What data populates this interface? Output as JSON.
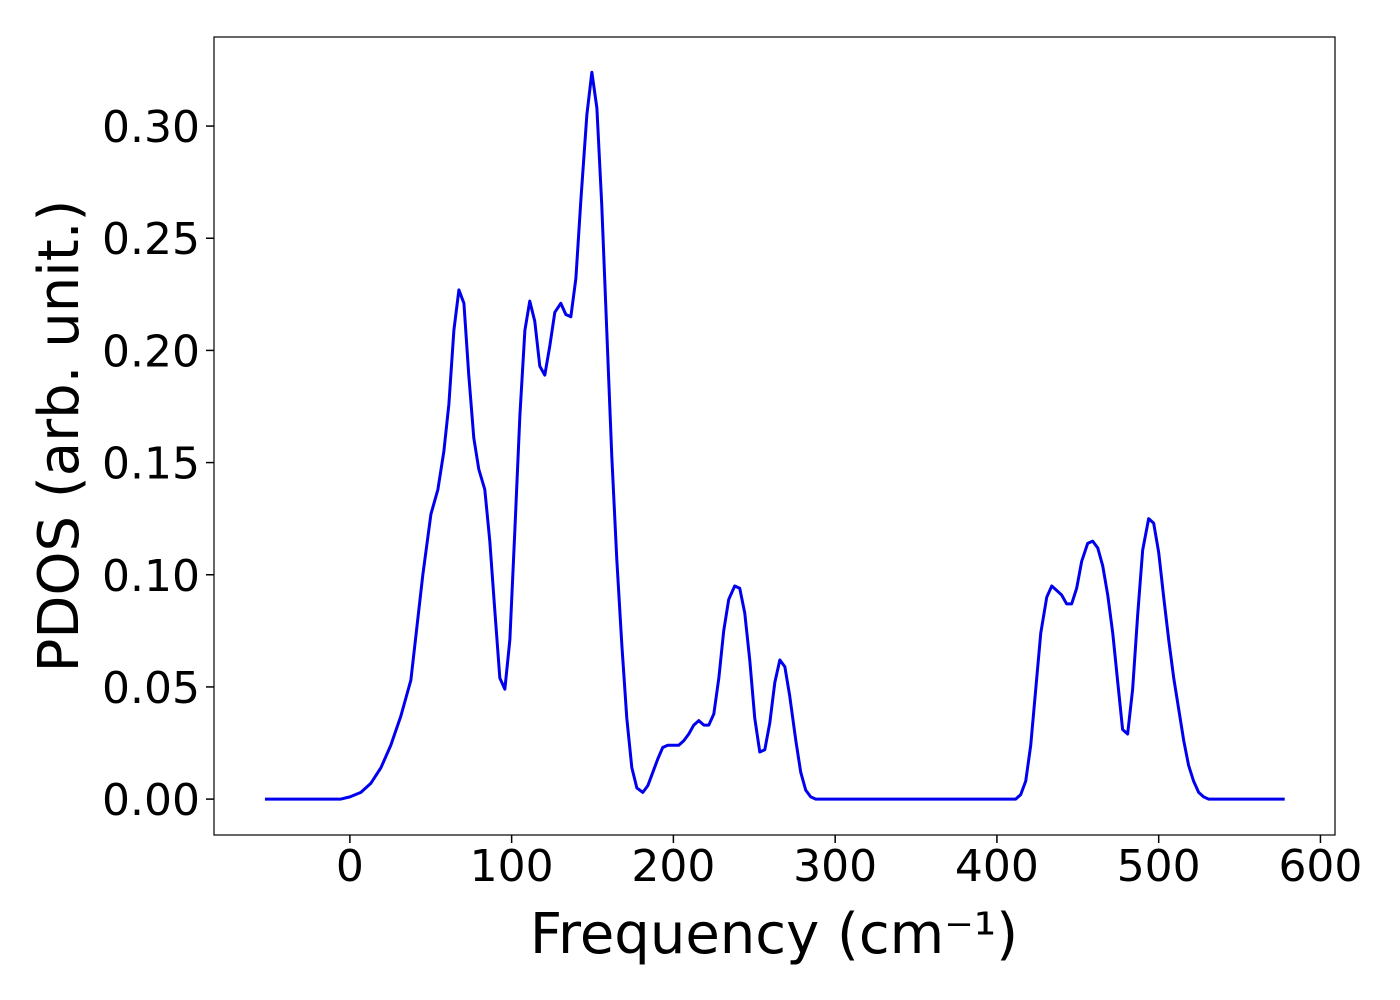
{
  "chart_data": {
    "type": "line",
    "xlabel": "Frequency (cm⁻¹)",
    "ylabel": "PDOS (arb. unit.)",
    "xlim": [
      -84,
      609
    ],
    "ylim": [
      -0.016,
      0.3397
    ],
    "xticks": [
      0,
      100,
      200,
      300,
      400,
      500,
      600
    ],
    "yticks": [
      {
        "value": 0,
        "label": "0.00"
      },
      {
        "value": 0.05,
        "label": "0.05"
      },
      {
        "value": 0.1,
        "label": "0.10"
      },
      {
        "value": 0.15,
        "label": "0.15"
      },
      {
        "value": 0.2,
        "label": "0.20"
      },
      {
        "value": 0.25,
        "label": "0.25"
      },
      {
        "value": 0.3,
        "label": "0.30"
      }
    ],
    "grid": false,
    "x": [
      -52.5,
      -5.6,
      0,
      6.8,
      12.9,
      19.2,
      25.3,
      31.5,
      37.7,
      45.1,
      50.1,
      54.4,
      58.1,
      61.2,
      64.3,
      67.4,
      70.5,
      73.5,
      76.6,
      79.7,
      83.4,
      86.5,
      89.6,
      92.7,
      95.8,
      98.9,
      102.0,
      105.1,
      108.2,
      111.2,
      114.3,
      117.4,
      120.5,
      123.6,
      126.7,
      130.4,
      133.5,
      136.6,
      139.7,
      142.8,
      146.5,
      149.6,
      152.7,
      155.7,
      158.8,
      161.9,
      165.0,
      168.1,
      171.2,
      174.3,
      177.4,
      181.1,
      184.2,
      187.3,
      190.4,
      193.4,
      196.5,
      199.6,
      203.3,
      206.4,
      209.5,
      212.6,
      215.7,
      218.8,
      221.9,
      225.0,
      228.1,
      231.1,
      234.2,
      237.9,
      241.0,
      244.1,
      247.2,
      250.3,
      253.4,
      256.5,
      259.6,
      262.7,
      265.8,
      268.9,
      271.9,
      275.7,
      278.7,
      281.8,
      284.9,
      288.0,
      411.6,
      414.7,
      417.8,
      420.9,
      424.0,
      427.1,
      430.8,
      433.9,
      437.0,
      440.0,
      443.1,
      446.2,
      449.3,
      452.4,
      456.1,
      459.2,
      462.3,
      465.4,
      468.5,
      471.6,
      474.7,
      477.7,
      480.8,
      483.9,
      487.0,
      490.1,
      493.8,
      496.9,
      500.0,
      503.1,
      506.2,
      509.3,
      512.4,
      515.5,
      518.5,
      521.6,
      524.7,
      527.8,
      530.9,
      534.0,
      577.9
    ],
    "series": [
      {
        "name": "PDOS",
        "color": "#0000ee",
        "values": [
          0,
          0,
          0.001,
          0.003,
          0.007,
          0.014,
          0.024,
          0.037,
          0.053,
          0.1,
          0.127,
          0.138,
          0.155,
          0.176,
          0.209,
          0.227,
          0.221,
          0.189,
          0.161,
          0.147,
          0.138,
          0.115,
          0.084,
          0.054,
          0.049,
          0.071,
          0.12,
          0.171,
          0.209,
          0.222,
          0.213,
          0.193,
          0.189,
          0.202,
          0.217,
          0.221,
          0.216,
          0.215,
          0.232,
          0.267,
          0.305,
          0.324,
          0.308,
          0.265,
          0.209,
          0.153,
          0.107,
          0.069,
          0.036,
          0.014,
          0.005,
          0.003,
          0.006,
          0.012,
          0.018,
          0.023,
          0.024,
          0.024,
          0.024,
          0.026,
          0.029,
          0.033,
          0.035,
          0.033,
          0.033,
          0.038,
          0.054,
          0.075,
          0.089,
          0.095,
          0.094,
          0.083,
          0.062,
          0.036,
          0.021,
          0.022,
          0.034,
          0.052,
          0.062,
          0.059,
          0.046,
          0.026,
          0.012,
          0.004,
          0.001,
          0,
          0,
          0.002,
          0.008,
          0.024,
          0.049,
          0.074,
          0.09,
          0.095,
          0.093,
          0.091,
          0.087,
          0.087,
          0.094,
          0.106,
          0.114,
          0.115,
          0.112,
          0.104,
          0.091,
          0.074,
          0.052,
          0.031,
          0.029,
          0.049,
          0.082,
          0.111,
          0.125,
          0.123,
          0.11,
          0.09,
          0.071,
          0.054,
          0.04,
          0.026,
          0.015,
          0.008,
          0.003,
          0.001,
          0,
          0,
          0
        ]
      }
    ]
  }
}
